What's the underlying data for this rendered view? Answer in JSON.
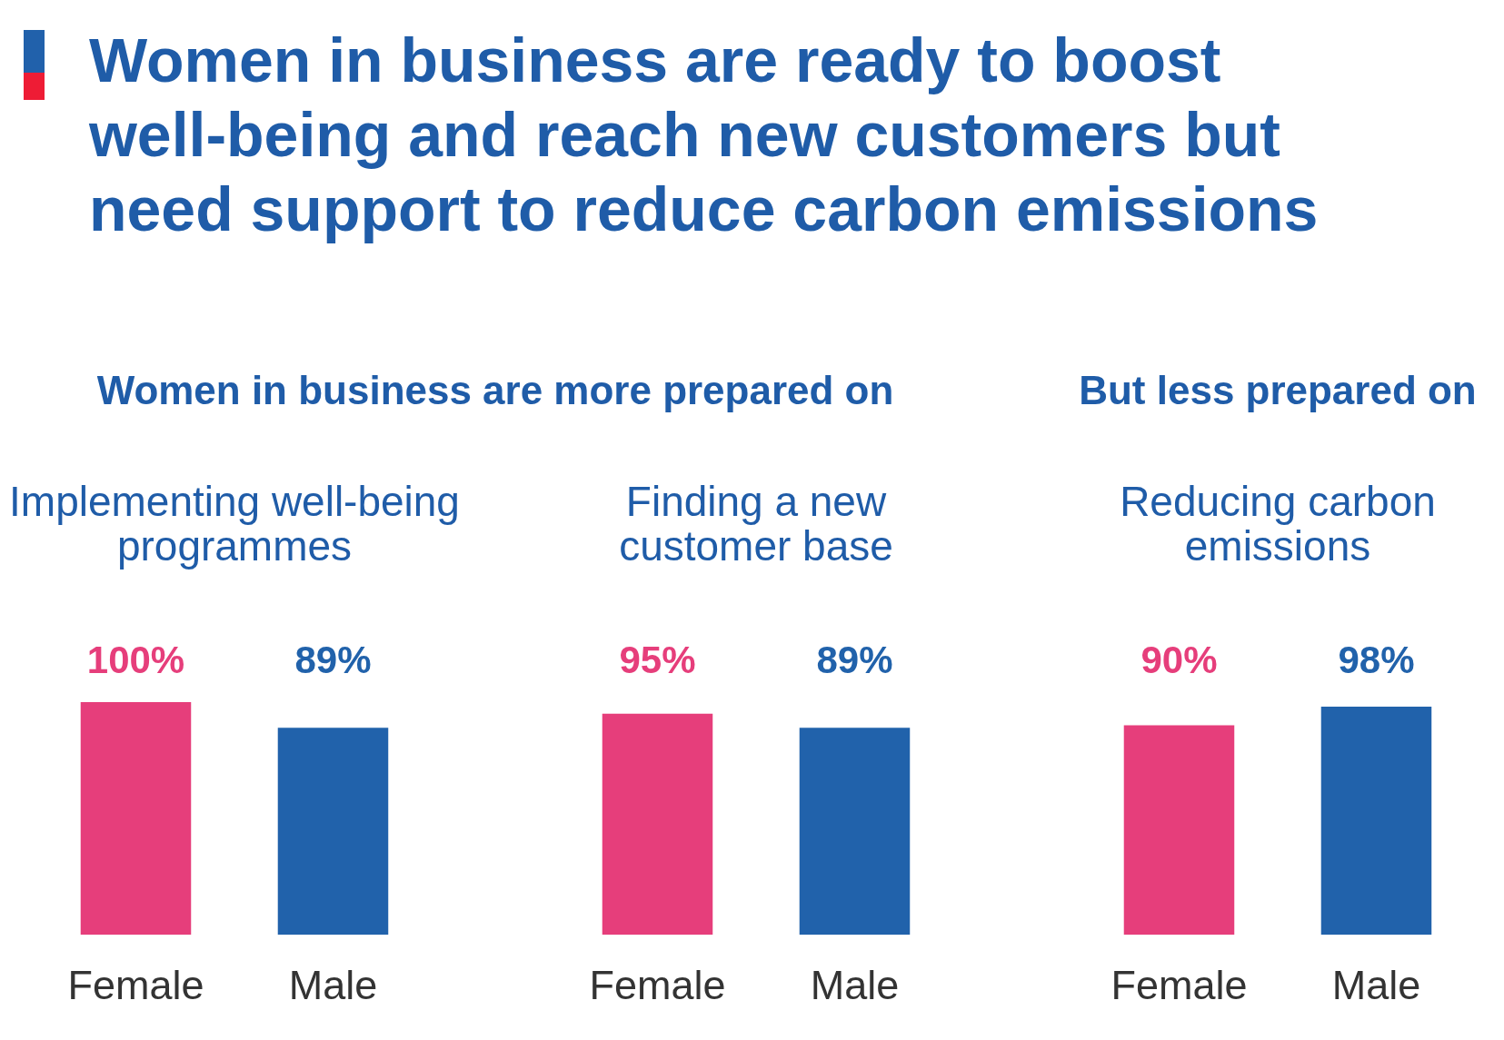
{
  "chart_data": [
    {
      "type": "bar",
      "title": "Implementing well-being programmes",
      "subtitle": "Women in business are more prepared on",
      "annotations": [
        "Women in business are ready to boost well-being and reach new customers but need support to reduce carbon emissions"
      ],
      "categories": [
        "Female",
        "Male"
      ],
      "values": [
        100,
        89
      ],
      "colors": [
        "#e63e7b",
        "#2162ab"
      ],
      "value_labels": [
        "100%",
        "89%"
      ],
      "tick_labels": "x"
    },
    {
      "type": "bar",
      "title": "Finding a new customer base",
      "categories": [
        "Female",
        "Male"
      ],
      "values": [
        95,
        89
      ],
      "colors": [
        "#e63e7b",
        "#2162ab"
      ],
      "value_labels": [
        "95%",
        "89%"
      ],
      "tick_labels": "x"
    },
    {
      "type": "bar",
      "title": "Reducing carbon emissions",
      "subtitle": "But less prepared on",
      "categories": [
        "Female",
        "Male"
      ],
      "values": [
        90,
        98
      ],
      "colors": [
        "#e63e7b",
        "#2162ab"
      ],
      "value_labels": [
        "90%",
        "98%"
      ],
      "tick_labels": "x"
    }
  ]
}
